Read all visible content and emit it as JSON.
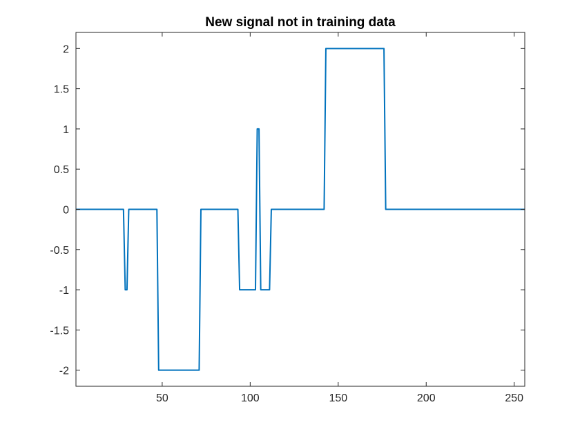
{
  "chart_data": {
    "type": "line",
    "title": "New signal not in training data",
    "xlabel": "",
    "ylabel": "",
    "xlim": [
      1,
      256
    ],
    "ylim": [
      -2.2,
      2.2
    ],
    "xticks": [
      50,
      100,
      150,
      200,
      250
    ],
    "xtick_labels": [
      "50",
      "100",
      "150",
      "200",
      "250"
    ],
    "yticks": [
      2,
      1.5,
      1,
      0.5,
      0,
      -0.5,
      -1,
      -1.5,
      -2
    ],
    "ytick_labels": [
      "2",
      "1.5",
      "1",
      "0.5",
      "0",
      "-0.5",
      "-1",
      "-1.5",
      "-2"
    ],
    "grid": false,
    "legend": "none",
    "line_color": "#0072BD",
    "series": [
      {
        "x": [
          1,
          28,
          29,
          30,
          31,
          47,
          48,
          71,
          72,
          93,
          94,
          103,
          104,
          105,
          106,
          107,
          111,
          112,
          142,
          143,
          176,
          177,
          256
        ],
        "values": [
          0,
          0,
          -1,
          -1,
          0,
          0,
          -2,
          -2,
          0,
          0,
          -1,
          -1,
          1,
          1,
          -1,
          -1,
          -1,
          0,
          0,
          2,
          2,
          0,
          0
        ]
      }
    ]
  }
}
